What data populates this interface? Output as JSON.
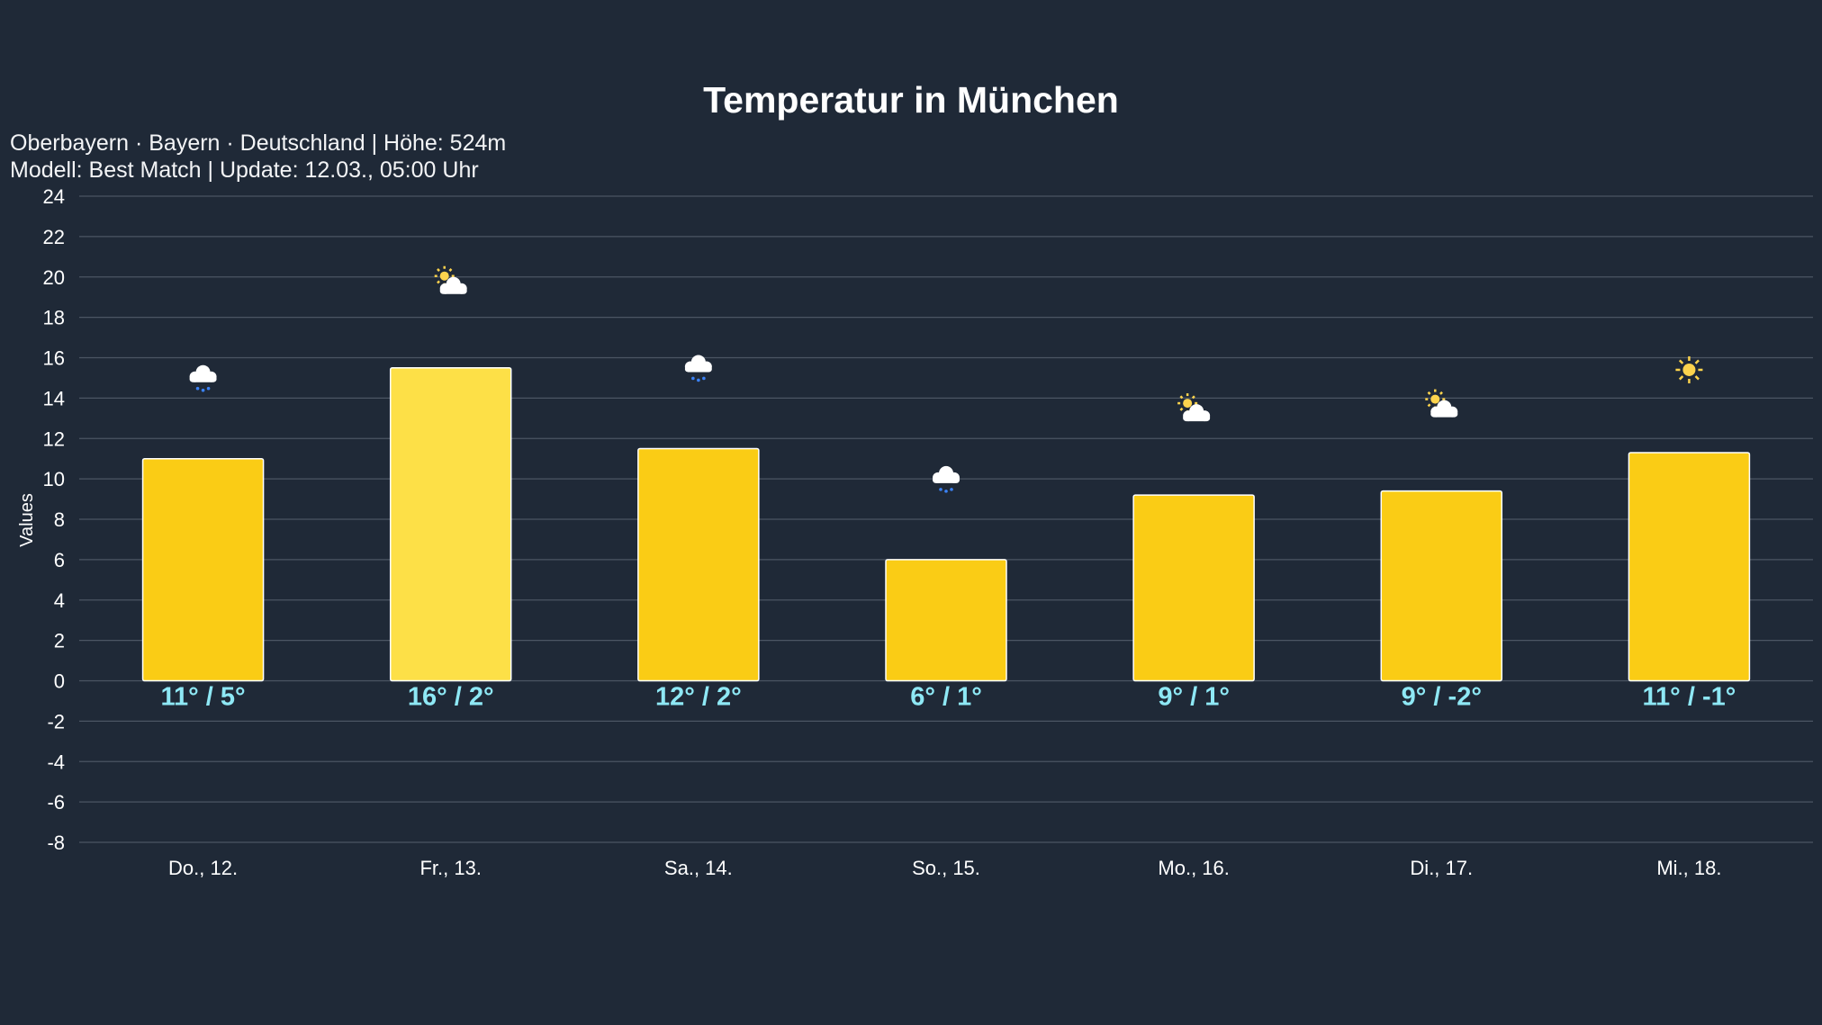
{
  "header": {
    "title": "Temperatur in München",
    "subtitle_line1": "Oberbayern · Bayern · Deutschland | Höhe: 524m",
    "subtitle_line2": "Modell: Best Match | Update: 12.03., 05:00 Uhr"
  },
  "chart_data": {
    "type": "bar",
    "title": "Temperatur in München",
    "xlabel": "",
    "ylabel": "Values",
    "ylim": [
      -8,
      24
    ],
    "yticks": [
      24,
      22,
      20,
      18,
      16,
      14,
      12,
      10,
      8,
      6,
      4,
      2,
      0,
      -2,
      -4,
      -6,
      -8
    ],
    "grid": true,
    "categories": [
      "Do., 12.",
      "Fr., 13.",
      "Sa., 14.",
      "So., 15.",
      "Mo., 16.",
      "Di., 17.",
      "Mi., 18."
    ],
    "values": [
      11.0,
      15.5,
      11.5,
      6.0,
      9.2,
      9.4,
      11.3
    ],
    "data_labels": [
      "11° / 5°",
      "16° / 2°",
      "12° / 2°",
      "6° / 1°",
      "9° / 1°",
      "9° / -2°",
      "11° / -1°"
    ],
    "weather_icons": [
      "cloud-drizzle",
      "sun-behind-cloud",
      "cloud-drizzle",
      "cloud-drizzle",
      "sun-behind-cloud",
      "sun-behind-cloud",
      "sun"
    ],
    "highlighted_index": 1,
    "colors": {
      "background": "#1f2937",
      "bar": "#facc15",
      "bar_highlight": "#fde047",
      "label": "#8ee8f5",
      "grid": "#4b5563",
      "drizzle": "#3b82f6",
      "sun": "#fcd34d"
    }
  }
}
